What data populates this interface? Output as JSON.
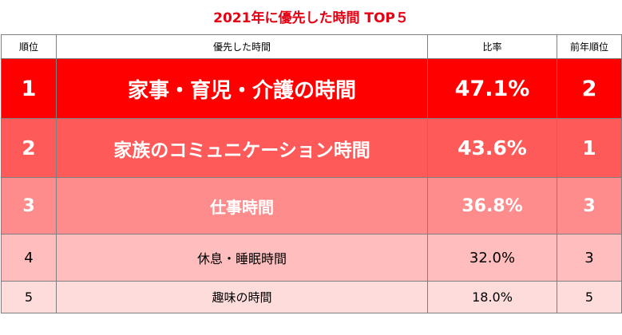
{
  "chart_data": {
    "type": "table",
    "title": "2021年に優先した時間 TOP５",
    "columns": [
      "順位",
      "優先した時間",
      "比率",
      "前年順位"
    ],
    "rows": [
      {
        "rank": "1",
        "item": "家事・育児・介護の時間",
        "ratio": "47.1%",
        "prev_rank": "2"
      },
      {
        "rank": "2",
        "item": "家族のコミュニケーション時間",
        "ratio": "43.6%",
        "prev_rank": "1"
      },
      {
        "rank": "3",
        "item": "仕事時間",
        "ratio": "36.8%",
        "prev_rank": "3"
      },
      {
        "rank": "4",
        "item": "休息・睡眠時間",
        "ratio": "32.0%",
        "prev_rank": "3"
      },
      {
        "rank": "5",
        "item": "趣味の時間",
        "ratio": "18.0%",
        "prev_rank": "5"
      }
    ]
  },
  "colors": {
    "title": "#e60012",
    "row_fills": [
      "#ff0000",
      "#ff5a5a",
      "#ff8c8c",
      "#ffbdbd",
      "#ffdcdc"
    ]
  }
}
